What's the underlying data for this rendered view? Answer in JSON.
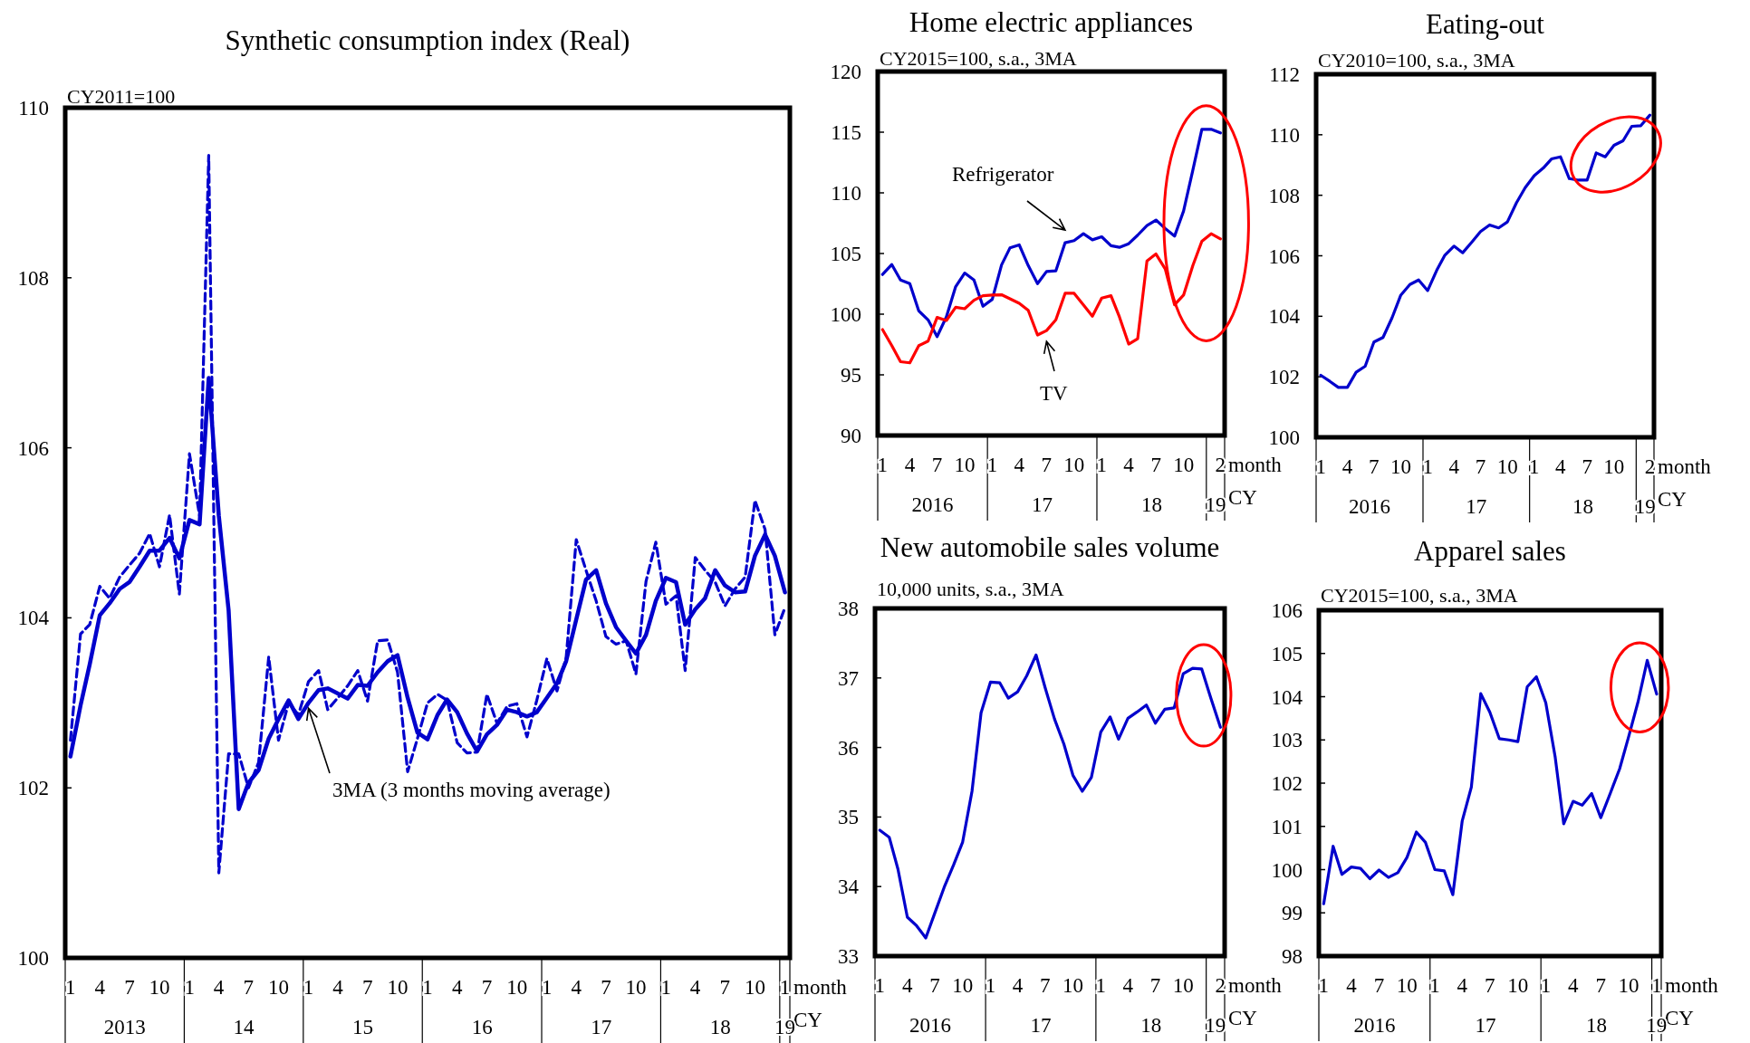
{
  "chart_data": [
    {
      "type": "line",
      "title": "Synthetic consumption index (Real)",
      "ylabel": "CY2011=100",
      "xlabel": "month",
      "annotations": [
        "CY",
        "2013",
        "14",
        "15",
        "16",
        "17",
        "18",
        "19"
      ],
      "x": [
        "2013-01",
        "2013-02",
        "2013-03",
        "2013-04",
        "2013-05",
        "2013-06",
        "2013-07",
        "2013-08",
        "2013-09",
        "2013-10",
        "2013-11",
        "2013-12",
        "2014-01",
        "2014-02",
        "2014-03",
        "2014-04",
        "2014-05",
        "2014-06",
        "2014-07",
        "2014-08",
        "2014-09",
        "2014-10",
        "2014-11",
        "2014-12",
        "2015-01",
        "2015-02",
        "2015-03",
        "2015-04",
        "2015-05",
        "2015-06",
        "2015-07",
        "2015-08",
        "2015-09",
        "2015-10",
        "2015-11",
        "2015-12",
        "2016-01",
        "2016-02",
        "2016-03",
        "2016-04",
        "2016-05",
        "2016-06",
        "2016-07",
        "2016-08",
        "2016-09",
        "2016-10",
        "2016-11",
        "2016-12",
        "2017-01",
        "2017-02",
        "2017-03",
        "2017-04",
        "2017-05",
        "2017-06",
        "2017-07",
        "2017-08",
        "2017-09",
        "2017-10",
        "2017-11",
        "2017-12",
        "2018-01",
        "2018-02",
        "2018-03",
        "2018-04",
        "2018-05",
        "2018-06",
        "2018-07",
        "2018-08",
        "2018-09",
        "2018-10",
        "2018-11",
        "2018-12",
        "2019-01"
      ],
      "xlim": [
        "2012-12-16",
        "2019-01-16"
      ],
      "xticks": [
        {
          "value": "2013-01",
          "label": "1"
        },
        {
          "value": "2013-04",
          "label": "4"
        },
        {
          "value": "2013-07",
          "label": "7"
        },
        {
          "value": "2013-10",
          "label": "10"
        },
        {
          "value": "2014-01",
          "label": "1"
        },
        {
          "value": "2014-04",
          "label": "4"
        },
        {
          "value": "2014-07",
          "label": "7"
        },
        {
          "value": "2014-10",
          "label": "10"
        },
        {
          "value": "2015-01",
          "label": "1"
        },
        {
          "value": "2015-04",
          "label": "4"
        },
        {
          "value": "2015-07",
          "label": "7"
        },
        {
          "value": "2015-10",
          "label": "10"
        },
        {
          "value": "2016-01",
          "label": "1"
        },
        {
          "value": "2016-04",
          "label": "4"
        },
        {
          "value": "2016-07",
          "label": "7"
        },
        {
          "value": "2016-10",
          "label": "10"
        },
        {
          "value": "2017-01",
          "label": "1"
        },
        {
          "value": "2017-04",
          "label": "4"
        },
        {
          "value": "2017-07",
          "label": "7"
        },
        {
          "value": "2017-10",
          "label": "10"
        },
        {
          "value": "2018-01",
          "label": "1"
        },
        {
          "value": "2018-04",
          "label": "4"
        },
        {
          "value": "2018-07",
          "label": "7"
        },
        {
          "value": "2018-10",
          "label": "10"
        },
        {
          "value": "2019-01",
          "label": "1"
        }
      ],
      "ylim": [
        100,
        110
      ],
      "yticks": [
        100,
        102,
        104,
        106,
        108,
        110
      ],
      "series": [
        {
          "color": "#0000cc",
          "line_style": "dashed",
          "values": [
            102.56,
            103.81,
            103.92,
            104.37,
            104.23,
            104.48,
            104.62,
            104.76,
            104.99,
            104.6,
            105.21,
            104.28,
            105.93,
            105.2,
            109.44,
            101.0,
            102.4,
            102.4,
            102.0,
            102.3,
            103.54,
            102.56,
            103.0,
            102.86,
            103.25,
            103.38,
            102.92,
            103.06,
            103.2,
            103.38,
            103.02,
            103.73,
            103.74,
            103.36,
            102.19,
            102.58,
            103.0,
            103.1,
            103.03,
            102.53,
            102.41,
            102.42,
            103.1,
            102.76,
            102.96,
            102.99,
            102.6,
            103.03,
            103.52,
            103.14,
            103.53,
            104.92,
            104.56,
            104.2,
            103.78,
            103.69,
            103.73,
            103.34,
            104.43,
            104.89,
            104.16,
            104.26,
            103.38,
            104.71,
            104.56,
            104.42,
            104.14,
            104.34,
            104.48,
            105.38,
            105.04,
            103.8,
            104.12
          ]
        },
        {
          "name": "3MA (3 months moving average)",
          "color": "#0000cc",
          "line_style": "solid",
          "values": [
            102.37,
            102.97,
            103.45,
            104.03,
            104.17,
            104.34,
            104.42,
            104.6,
            104.79,
            104.79,
            104.94,
            104.7,
            105.15,
            105.1,
            106.82,
            105.2,
            104.09,
            101.75,
            102.06,
            102.21,
            102.58,
            102.81,
            103.03,
            102.81,
            103.0,
            103.15,
            103.17,
            103.11,
            103.05,
            103.21,
            103.2,
            103.36,
            103.49,
            103.56,
            103.06,
            102.65,
            102.57,
            102.86,
            103.04,
            102.89,
            102.64,
            102.43,
            102.63,
            102.74,
            102.92,
            102.89,
            102.84,
            102.89,
            103.06,
            103.23,
            103.49,
            103.98,
            104.45,
            104.56,
            104.17,
            103.89,
            103.73,
            103.58,
            103.8,
            104.2,
            104.47,
            104.42,
            103.92,
            104.1,
            104.23,
            104.56,
            104.38,
            104.3,
            104.31,
            104.73,
            104.98,
            104.73,
            104.3
          ]
        }
      ]
    },
    {
      "type": "line",
      "title": "Home electric appliances",
      "ylabel": "CY2015=100, s.a., 3MA",
      "xlabel": "month",
      "annotations": [
        "CY",
        "2016",
        "17",
        "18",
        "19"
      ],
      "x": [
        "2016-01",
        "2016-02",
        "2016-03",
        "2016-04",
        "2016-05",
        "2016-06",
        "2016-07",
        "2016-08",
        "2016-09",
        "2016-10",
        "2016-11",
        "2016-12",
        "2017-01",
        "2017-02",
        "2017-03",
        "2017-04",
        "2017-05",
        "2017-06",
        "2017-07",
        "2017-08",
        "2017-09",
        "2017-10",
        "2017-11",
        "2017-12",
        "2018-01",
        "2018-02",
        "2018-03",
        "2018-04",
        "2018-05",
        "2018-06",
        "2018-07",
        "2018-08",
        "2018-09",
        "2018-10",
        "2018-11",
        "2018-12",
        "2019-01",
        "2019-02"
      ],
      "xlim": [
        "2015-12-16",
        "2019-02-15"
      ],
      "xticks": [
        {
          "value": "2016-01",
          "label": "1"
        },
        {
          "value": "2016-04",
          "label": "4"
        },
        {
          "value": "2016-07",
          "label": "7"
        },
        {
          "value": "2016-10",
          "label": "10"
        },
        {
          "value": "2017-01",
          "label": "1"
        },
        {
          "value": "2017-04",
          "label": "4"
        },
        {
          "value": "2017-07",
          "label": "7"
        },
        {
          "value": "2017-10",
          "label": "10"
        },
        {
          "value": "2018-01",
          "label": "1"
        },
        {
          "value": "2018-04",
          "label": "4"
        },
        {
          "value": "2018-07",
          "label": "7"
        },
        {
          "value": "2018-10",
          "label": "10"
        },
        {
          "value": "2019-02",
          "label": "2"
        }
      ],
      "ylim": [
        90,
        120
      ],
      "yticks": [
        90,
        95,
        100,
        105,
        110,
        115,
        120
      ],
      "series": [
        {
          "name": "Refrigerator",
          "color": "#0000cc",
          "values": [
            103.27,
            104.09,
            102.82,
            102.52,
            100.27,
            99.53,
            98.15,
            99.78,
            102.27,
            103.39,
            102.82,
            100.65,
            101.22,
            104.06,
            105.46,
            105.71,
            104.01,
            102.52,
            103.52,
            103.57,
            105.89,
            106.06,
            106.63,
            106.13,
            106.38,
            105.64,
            105.51,
            105.81,
            106.51,
            107.31,
            107.76,
            107.06,
            106.43,
            108.5,
            111.87,
            115.24,
            115.24,
            114.94
          ]
        },
        {
          "name": "TV",
          "color": "#ff0000",
          "values": [
            98.73,
            97.41,
            96.08,
            95.99,
            97.41,
            97.78,
            99.73,
            99.48,
            100.57,
            100.45,
            101.15,
            101.52,
            101.57,
            101.6,
            101.27,
            100.9,
            100.32,
            98.28,
            98.65,
            99.53,
            101.72,
            101.72,
            100.77,
            99.83,
            101.32,
            101.52,
            99.78,
            97.53,
            97.98,
            104.39,
            104.96,
            103.72,
            100.77,
            101.57,
            104.01,
            106.01,
            106.63,
            106.21
          ]
        }
      ]
    },
    {
      "type": "line",
      "title": "Eating-out",
      "ylabel": "CY2010=100, s.a., 3MA",
      "xlabel": "month",
      "annotations": [
        "CY",
        "2016",
        "17",
        "18",
        "19"
      ],
      "x": [
        "2016-01",
        "2016-02",
        "2016-03",
        "2016-04",
        "2016-05",
        "2016-06",
        "2016-07",
        "2016-08",
        "2016-09",
        "2016-10",
        "2016-11",
        "2016-12",
        "2017-01",
        "2017-02",
        "2017-03",
        "2017-04",
        "2017-05",
        "2017-06",
        "2017-07",
        "2017-08",
        "2017-09",
        "2017-10",
        "2017-11",
        "2017-12",
        "2018-01",
        "2018-02",
        "2018-03",
        "2018-04",
        "2018-05",
        "2018-06",
        "2018-07",
        "2018-08",
        "2018-09",
        "2018-10",
        "2018-11",
        "2018-12",
        "2019-01",
        "2019-02"
      ],
      "xlim": [
        "2015-12-16",
        "2019-02-15"
      ],
      "xticks": [
        {
          "value": "2016-01",
          "label": "1"
        },
        {
          "value": "2016-04",
          "label": "4"
        },
        {
          "value": "2016-07",
          "label": "7"
        },
        {
          "value": "2016-10",
          "label": "10"
        },
        {
          "value": "2017-01",
          "label": "1"
        },
        {
          "value": "2017-04",
          "label": "4"
        },
        {
          "value": "2017-07",
          "label": "7"
        },
        {
          "value": "2017-10",
          "label": "10"
        },
        {
          "value": "2018-01",
          "label": "1"
        },
        {
          "value": "2018-04",
          "label": "4"
        },
        {
          "value": "2018-07",
          "label": "7"
        },
        {
          "value": "2018-10",
          "label": "10"
        },
        {
          "value": "2019-02",
          "label": "2"
        }
      ],
      "ylim": [
        100,
        112
      ],
      "yticks": [
        100,
        102,
        104,
        106,
        108,
        110,
        112
      ],
      "series": [
        {
          "color": "#0000cc",
          "values": [
            102.05,
            101.85,
            101.65,
            101.65,
            102.15,
            102.35,
            103.15,
            103.3,
            103.95,
            104.7,
            105.05,
            105.2,
            104.85,
            105.52,
            106.02,
            106.32,
            106.1,
            106.45,
            106.8,
            107.02,
            106.92,
            107.12,
            107.75,
            108.25,
            108.65,
            108.9,
            109.2,
            109.27,
            108.55,
            108.5,
            108.5,
            109.4,
            109.27,
            109.65,
            109.8,
            110.28,
            110.3,
            110.65
          ]
        }
      ]
    },
    {
      "type": "line",
      "title": "New automobile sales volume",
      "ylabel": "10,000 units, s.a., 3MA",
      "xlabel": "month",
      "annotations": [
        "CY",
        "2016",
        "17",
        "18",
        "19"
      ],
      "x": [
        "2016-01",
        "2016-02",
        "2016-03",
        "2016-04",
        "2016-05",
        "2016-06",
        "2016-07",
        "2016-08",
        "2016-09",
        "2016-10",
        "2016-11",
        "2016-12",
        "2017-01",
        "2017-02",
        "2017-03",
        "2017-04",
        "2017-05",
        "2017-06",
        "2017-07",
        "2017-08",
        "2017-09",
        "2017-10",
        "2017-11",
        "2017-12",
        "2018-01",
        "2018-02",
        "2018-03",
        "2018-04",
        "2018-05",
        "2018-06",
        "2018-07",
        "2018-08",
        "2018-09",
        "2018-10",
        "2018-11",
        "2018-12",
        "2019-01",
        "2019-02"
      ],
      "xlim": [
        "2015-12-16",
        "2019-02-15"
      ],
      "xticks": [
        {
          "value": "2016-01",
          "label": "1"
        },
        {
          "value": "2016-04",
          "label": "4"
        },
        {
          "value": "2016-07",
          "label": "7"
        },
        {
          "value": "2016-10",
          "label": "10"
        },
        {
          "value": "2017-01",
          "label": "1"
        },
        {
          "value": "2017-04",
          "label": "4"
        },
        {
          "value": "2017-07",
          "label": "7"
        },
        {
          "value": "2017-10",
          "label": "10"
        },
        {
          "value": "2018-01",
          "label": "1"
        },
        {
          "value": "2018-04",
          "label": "4"
        },
        {
          "value": "2018-07",
          "label": "7"
        },
        {
          "value": "2018-10",
          "label": "10"
        },
        {
          "value": "2019-02",
          "label": "2"
        }
      ],
      "ylim": [
        33,
        38
      ],
      "yticks": [
        33,
        34,
        35,
        36,
        37,
        38
      ],
      "series": [
        {
          "color": "#0000cc",
          "values": [
            34.81,
            34.71,
            34.25,
            33.56,
            33.44,
            33.26,
            33.62,
            33.99,
            34.31,
            34.64,
            35.37,
            36.5,
            36.94,
            36.93,
            36.71,
            36.8,
            37.03,
            37.33,
            36.86,
            36.41,
            36.05,
            35.6,
            35.37,
            35.57,
            36.22,
            36.44,
            36.12,
            36.42,
            36.51,
            36.61,
            36.35,
            36.55,
            36.57,
            37.06,
            37.14,
            37.13,
            36.7,
            36.29
          ]
        }
      ]
    },
    {
      "type": "line",
      "title": "Apparel sales",
      "ylabel": "CY2015=100, s.a., 3MA",
      "xlabel": "month",
      "annotations": [
        "CY",
        "2016",
        "17",
        "18",
        "19"
      ],
      "x": [
        "2016-01",
        "2016-02",
        "2016-03",
        "2016-04",
        "2016-05",
        "2016-06",
        "2016-07",
        "2016-08",
        "2016-09",
        "2016-10",
        "2016-11",
        "2016-12",
        "2017-01",
        "2017-02",
        "2017-03",
        "2017-04",
        "2017-05",
        "2017-06",
        "2017-07",
        "2017-08",
        "2017-09",
        "2017-10",
        "2017-11",
        "2017-12",
        "2018-01",
        "2018-02",
        "2018-03",
        "2018-04",
        "2018-05",
        "2018-06",
        "2018-07",
        "2018-08",
        "2018-09",
        "2018-10",
        "2018-11",
        "2018-12",
        "2019-01"
      ],
      "xlim": [
        "2015-12-16",
        "2019-01-16"
      ],
      "xticks": [
        {
          "value": "2016-01",
          "label": "1"
        },
        {
          "value": "2016-04",
          "label": "4"
        },
        {
          "value": "2016-07",
          "label": "7"
        },
        {
          "value": "2016-10",
          "label": "10"
        },
        {
          "value": "2017-01",
          "label": "1"
        },
        {
          "value": "2017-04",
          "label": "4"
        },
        {
          "value": "2017-07",
          "label": "7"
        },
        {
          "value": "2017-10",
          "label": "10"
        },
        {
          "value": "2018-01",
          "label": "1"
        },
        {
          "value": "2018-04",
          "label": "4"
        },
        {
          "value": "2018-07",
          "label": "7"
        },
        {
          "value": "2018-10",
          "label": "10"
        },
        {
          "value": "2019-01",
          "label": "1"
        }
      ],
      "ylim": [
        98,
        106
      ],
      "yticks": [
        98,
        99,
        100,
        101,
        102,
        103,
        104,
        105,
        106
      ],
      "series": [
        {
          "color": "#0000cc",
          "values": [
            99.21,
            100.54,
            99.89,
            100.06,
            100.03,
            99.79,
            99.99,
            99.82,
            99.93,
            100.28,
            100.87,
            100.63,
            100.0,
            99.97,
            99.42,
            101.13,
            101.91,
            104.07,
            103.64,
            103.03,
            103.0,
            102.96,
            104.23,
            104.46,
            103.86,
            102.6,
            101.06,
            101.58,
            101.49,
            101.76,
            101.2,
            101.76,
            102.33,
            103.08,
            103.89,
            104.84,
            104.06
          ]
        }
      ]
    }
  ]
}
